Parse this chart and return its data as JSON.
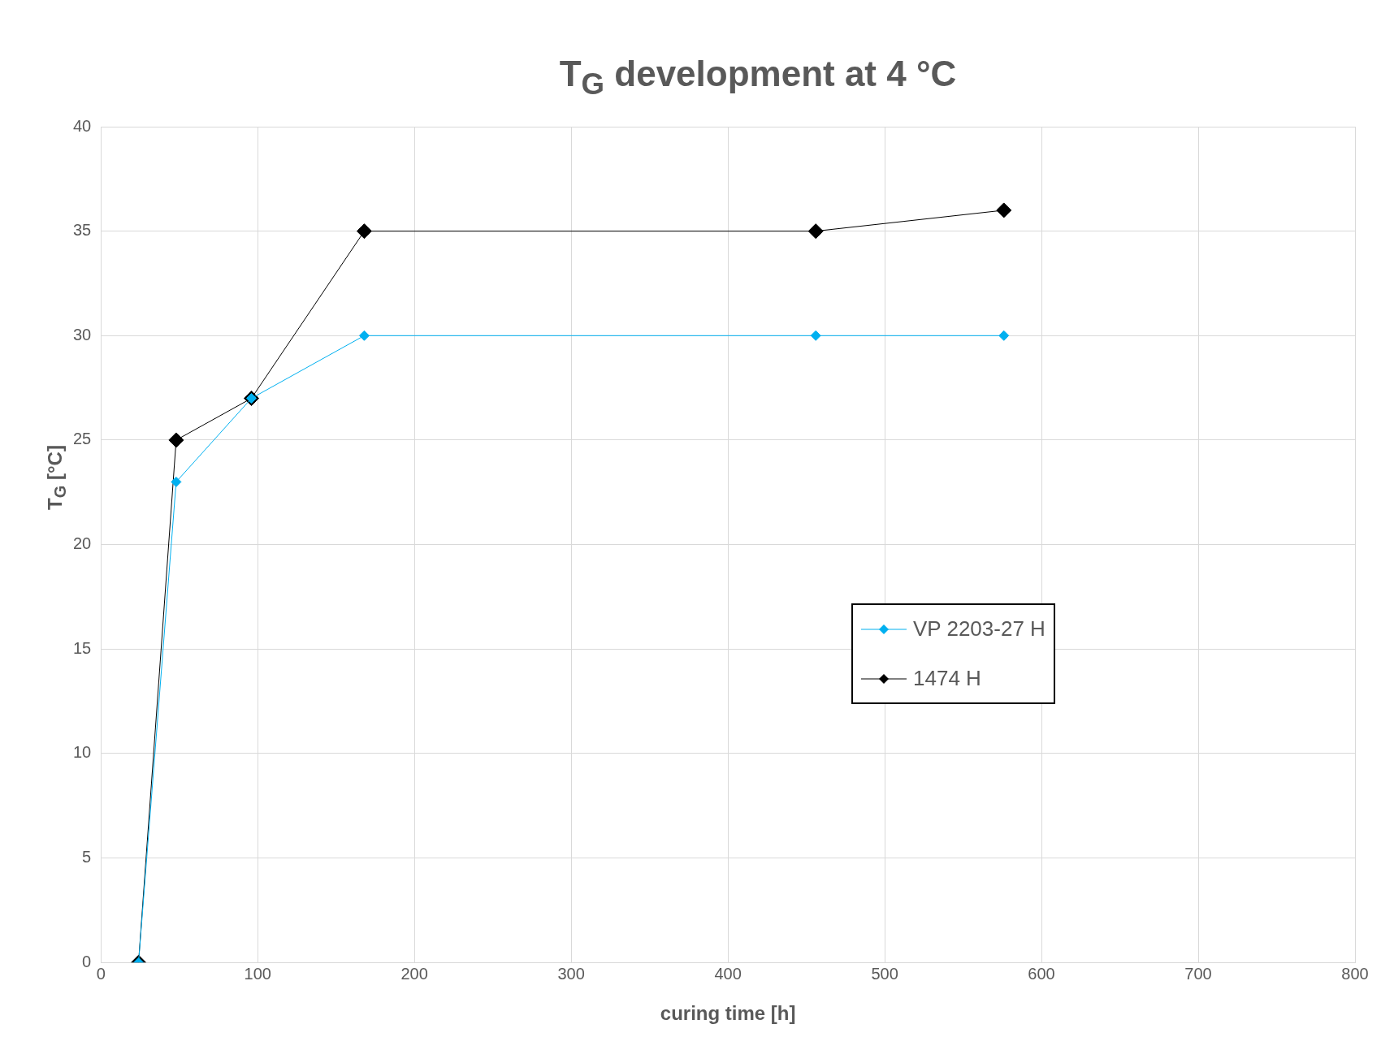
{
  "chart_data": {
    "type": "line",
    "title": "T$_{G}$ development at 4 °C",
    "xlabel": "curing time [h]",
    "ylabel": "T$_{G}$ [°C]",
    "x": [
      24,
      48,
      96,
      168,
      456,
      576
    ],
    "series": [
      {
        "name": "VP 2203-27 H",
        "color": "#00b0f0",
        "values": [
          0,
          23,
          27,
          30,
          30,
          30
        ]
      },
      {
        "name": "1474 H",
        "color": "#000000",
        "values": [
          0,
          25,
          27,
          35,
          35,
          36
        ]
      }
    ],
    "xlim": [
      0,
      800
    ],
    "xticks": [
      0,
      100,
      200,
      300,
      400,
      500,
      600,
      700,
      800
    ],
    "ylim": [
      0,
      40
    ],
    "yticks": [
      0,
      5,
      10,
      15,
      20,
      25,
      30,
      35,
      40
    ],
    "grid": true,
    "legend": "right",
    "marker": "diamond",
    "line_style": "solid"
  }
}
